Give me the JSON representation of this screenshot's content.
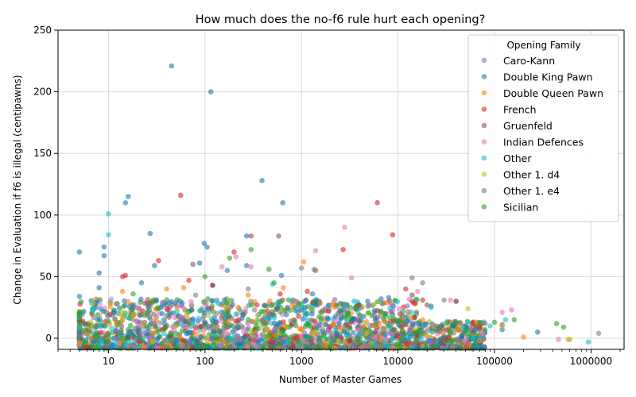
{
  "chart_data": {
    "type": "scatter",
    "title": "How much does the no-f6 rule hurt each opening?",
    "xlabel": "Number of Master Games",
    "ylabel": "Change in Evaluation if f6 is illegal (centipawns)",
    "xscale": "log",
    "xlim": [
      3,
      2200000
    ],
    "ylim": [
      -9,
      250
    ],
    "x_ticks": [
      10,
      100,
      1000,
      10000,
      100000,
      1000000
    ],
    "x_tick_labels": [
      "10",
      "100",
      "1000",
      "10000",
      "100000",
      "1000000"
    ],
    "y_ticks": [
      0,
      50,
      100,
      150,
      200,
      250
    ],
    "y_tick_labels": [
      "0",
      "50",
      "100",
      "150",
      "200",
      "250"
    ],
    "grid": true,
    "legend": {
      "title": "Opening Family",
      "position": "upper right",
      "entries": [
        "Caro-Kann",
        "Double King Pawn",
        "Double Queen Pawn",
        "French",
        "Gruenfeld",
        "Indian Defences",
        "Other",
        "Other 1. d4",
        "Other 1. e4",
        "Sicilian"
      ]
    },
    "series": [
      {
        "name": "Caro-Kann",
        "color": "#9467bd",
        "points": [
          [
            5,
            2
          ],
          [
            12,
            6
          ],
          [
            30,
            12
          ],
          [
            110,
            8
          ],
          [
            400,
            15
          ],
          [
            1500,
            10
          ],
          [
            3000,
            22
          ],
          [
            8000,
            5
          ],
          [
            15000,
            12
          ],
          [
            40000,
            30
          ],
          [
            80000,
            12
          ]
        ]
      },
      {
        "name": "Double King Pawn",
        "color": "#1f77b4",
        "points": [
          [
            5,
            70
          ],
          [
            5,
            34
          ],
          [
            8,
            53
          ],
          [
            8,
            41
          ],
          [
            9,
            74
          ],
          [
            9,
            67
          ],
          [
            15,
            110
          ],
          [
            16,
            115
          ],
          [
            22,
            45
          ],
          [
            27,
            85
          ],
          [
            30,
            59
          ],
          [
            45,
            221
          ],
          [
            55,
            30
          ],
          [
            88,
            61
          ],
          [
            98,
            77
          ],
          [
            105,
            74
          ],
          [
            115,
            200
          ],
          [
            120,
            43
          ],
          [
            170,
            55
          ],
          [
            270,
            83
          ],
          [
            270,
            59
          ],
          [
            390,
            128
          ],
          [
            620,
            51
          ],
          [
            640,
            110
          ],
          [
            1300,
            36
          ],
          [
            2500,
            22
          ],
          [
            5000,
            27
          ],
          [
            8000,
            33
          ],
          [
            14000,
            12
          ],
          [
            22000,
            26
          ],
          [
            60000,
            5
          ],
          [
            120000,
            7
          ],
          [
            280000,
            5
          ]
        ]
      },
      {
        "name": "Double Queen Pawn",
        "color": "#ff7f0e",
        "points": [
          [
            5,
            -5
          ],
          [
            14,
            38
          ],
          [
            40,
            40
          ],
          [
            60,
            41
          ],
          [
            280,
            35
          ],
          [
            650,
            41
          ],
          [
            1050,
            62
          ],
          [
            2100,
            27
          ],
          [
            6000,
            10
          ],
          [
            18000,
            15
          ],
          [
            55000,
            -5
          ],
          [
            70000,
            -2
          ],
          [
            200000,
            1
          ],
          [
            600000,
            -1
          ]
        ]
      },
      {
        "name": "French",
        "color": "#d62728",
        "points": [
          [
            14,
            50
          ],
          [
            15,
            51
          ],
          [
            33,
            63
          ],
          [
            56,
            116
          ],
          [
            68,
            47
          ],
          [
            120,
            43
          ],
          [
            200,
            70
          ],
          [
            600,
            36
          ],
          [
            1150,
            38
          ],
          [
            2700,
            72
          ],
          [
            6100,
            110
          ],
          [
            8800,
            84
          ],
          [
            12000,
            40
          ],
          [
            15000,
            28
          ],
          [
            18000,
            31
          ],
          [
            70000,
            9
          ]
        ]
      },
      {
        "name": "Gruenfeld",
        "color": "#8c564b",
        "points": [
          [
            75,
            60
          ],
          [
            300,
            83
          ],
          [
            580,
            83
          ],
          [
            1400,
            55
          ],
          [
            4000,
            27
          ],
          [
            14000,
            35
          ],
          [
            20000,
            27
          ],
          [
            40000,
            30
          ],
          [
            120000,
            11
          ]
        ]
      },
      {
        "name": "Indian Defences",
        "color": "#e377c2",
        "points": [
          [
            20,
            25
          ],
          [
            100,
            28
          ],
          [
            150,
            58
          ],
          [
            210,
            66
          ],
          [
            300,
            58
          ],
          [
            1400,
            71
          ],
          [
            2800,
            90
          ],
          [
            3300,
            49
          ],
          [
            5000,
            27
          ],
          [
            16000,
            38
          ],
          [
            35000,
            31
          ],
          [
            120000,
            21
          ],
          [
            150000,
            23
          ],
          [
            460000,
            -1
          ]
        ]
      },
      {
        "name": "Other",
        "color": "#17becf",
        "points": [
          [
            10,
            101
          ],
          [
            10,
            84
          ],
          [
            500,
            44
          ],
          [
            3500,
            30
          ],
          [
            22000,
            25
          ],
          [
            90000,
            10
          ],
          [
            130000,
            15
          ],
          [
            940000,
            -3
          ]
        ]
      },
      {
        "name": "Other 1. d4",
        "color": "#bcbd22",
        "points": [
          [
            50,
            10
          ],
          [
            300,
            5
          ],
          [
            4500,
            12
          ],
          [
            53000,
            24
          ],
          [
            120000,
            10
          ],
          [
            580000,
            -1
          ]
        ]
      },
      {
        "name": "Other 1. e4",
        "color": "#7f7f7f",
        "points": [
          [
            12,
            28
          ],
          [
            80,
            35
          ],
          [
            280,
            40
          ],
          [
            1000,
            57
          ],
          [
            1350,
            56
          ],
          [
            7000,
            28
          ],
          [
            14000,
            49
          ],
          [
            18000,
            45
          ],
          [
            30000,
            31
          ],
          [
            1200000,
            4
          ]
        ]
      },
      {
        "name": "Sicilian",
        "color": "#2ca02c",
        "points": [
          [
            18,
            36
          ],
          [
            100,
            50
          ],
          [
            180,
            65
          ],
          [
            300,
            72
          ],
          [
            460,
            56
          ],
          [
            520,
            45
          ],
          [
            1000,
            28
          ],
          [
            3000,
            20
          ],
          [
            9000,
            16
          ],
          [
            25000,
            10
          ],
          [
            100000,
            13
          ],
          [
            160000,
            15
          ],
          [
            440000,
            12
          ],
          [
            520000,
            9
          ]
        ]
      }
    ],
    "dense_cluster_note": "Thousands of overlapping points from all families between x=5 and x=80000, y≈-8 to 40"
  }
}
